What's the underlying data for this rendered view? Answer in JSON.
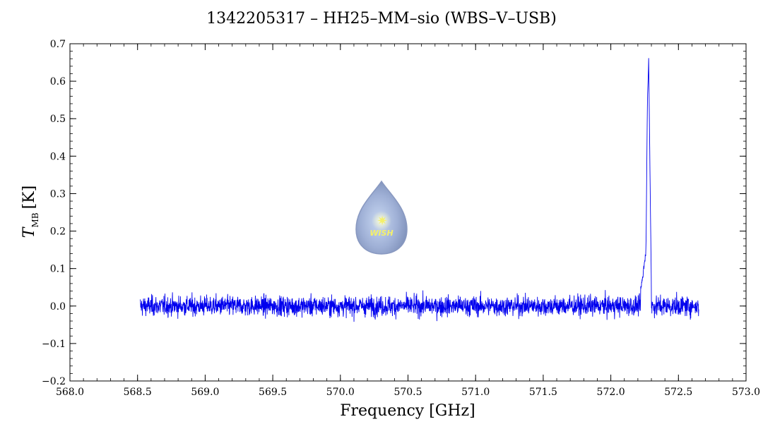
{
  "title": "1342205317 – HH25–MM–sio (WBS–V–USB)",
  "xlabel": "Frequency [GHz]",
  "ylabel": {
    "symbol": "T",
    "subscript": "MB",
    "unit": "[K]"
  },
  "watermark_text": "WISH",
  "colors": {
    "series": "#0000ee",
    "axis": "#000000",
    "background": "#ffffff"
  },
  "chart_data": {
    "type": "line",
    "xlim": [
      568.0,
      573.0
    ],
    "ylim": [
      -0.2,
      0.7
    ],
    "x_ticks": [
      "568.0",
      "568.5",
      "569.0",
      "569.5",
      "570.0",
      "570.5",
      "571.0",
      "571.5",
      "572.0",
      "572.5",
      "573.0"
    ],
    "y_ticks": [
      "−0.2",
      "−0.1",
      "0.0",
      "0.1",
      "0.2",
      "0.3",
      "0.4",
      "0.5",
      "0.6",
      "0.7"
    ],
    "grid": false,
    "series": [
      {
        "x_range": [
          568.52,
          572.65
        ],
        "baseline": 0.0,
        "noise_rms": 0.025,
        "features": [
          {
            "x": 572.22,
            "y": 0.04
          },
          {
            "x": 572.24,
            "y": 0.09
          },
          {
            "x": 572.26,
            "y": 0.15
          },
          {
            "x": 572.27,
            "y": 0.53
          },
          {
            "x": 572.28,
            "y": 0.66
          },
          {
            "x": 572.29,
            "y": 0.35
          },
          {
            "x": 572.3,
            "y": 0.05
          }
        ]
      }
    ]
  }
}
